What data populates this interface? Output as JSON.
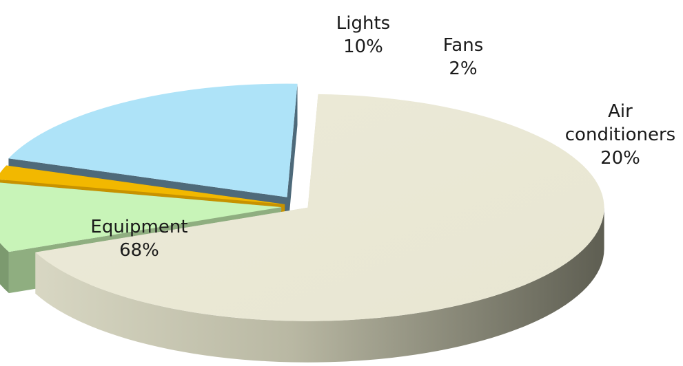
{
  "chart_data": {
    "type": "pie",
    "is_3d": true,
    "exploded": true,
    "title": "",
    "categories": [
      "Equipment",
      "Lights",
      "Fans",
      "Air conditioners"
    ],
    "values": [
      68,
      10,
      2,
      20
    ],
    "value_labels": [
      "68%",
      "10%",
      "2%",
      "20%"
    ],
    "label_lines": [
      [
        "Equipment"
      ],
      [
        "Lights"
      ],
      [
        "Fans"
      ],
      [
        "Air",
        "conditioners"
      ]
    ],
    "colors": {
      "Equipment": {
        "top": "#ecead8",
        "side_light": "#d6d5c0",
        "side_dark": "#5e5e52"
      },
      "Lights": {
        "top": "#c8f4b8",
        "side_light": "#8fae80",
        "side_dark": "#7c9a6f"
      },
      "Fans": {
        "top": "#f2b800",
        "side_light": "#c79200",
        "side_dark": "#9a7000"
      },
      "Air conditioners": {
        "top": "#aee3f8",
        "side_light": "#4e6a7a",
        "side_dark": "#3d5564"
      }
    },
    "legend": "none"
  }
}
